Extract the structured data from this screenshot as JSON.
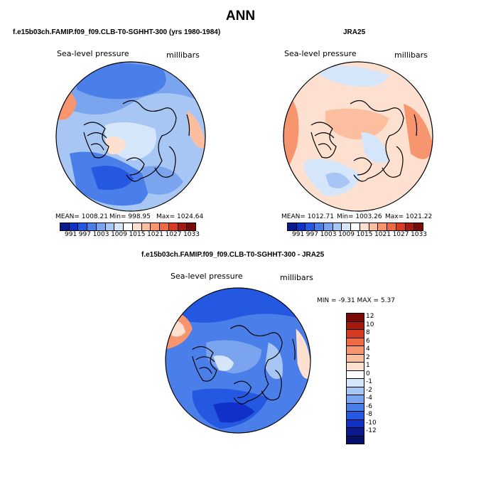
{
  "title": "ANN",
  "left_panel": {
    "header": "f.e15b03ch.FAMIP.f09_f09.CLB-T0-SGHHT-300 (yrs 1980-1984)",
    "variable": "Sea-level pressure",
    "units": "millibars",
    "mean": "MEAN= 1008.21",
    "min": "Min= 998.95",
    "max": "Max= 1024.64"
  },
  "right_panel": {
    "header": "JRA25",
    "variable": "Sea-level pressure",
    "units": "millibars",
    "mean": "MEAN= 1012.71",
    "min": "Min= 1003.26",
    "max": "Max= 1021.22"
  },
  "diff_panel": {
    "header": "f.e15b03ch.FAMIP.f09_f09.CLB-T0-SGHHT-300 - JRA25",
    "variable": "Sea-level pressure",
    "units": "millibars",
    "minmax": "MIN =  -9.31  MAX =   5.37"
  },
  "abs_colorbar": {
    "tick_labels": [
      "991",
      "997",
      "1003",
      "1009",
      "1015",
      "1021",
      "1027",
      "1033"
    ],
    "colors": [
      "#0a1a8c",
      "#1130c8",
      "#2458e0",
      "#4a7ee8",
      "#7aa4ee",
      "#a8c6f4",
      "#d6e6fa",
      "#ffffff",
      "#fde0cf",
      "#fbbfa0",
      "#f7966e",
      "#ee6a45",
      "#d63a22",
      "#a51a10",
      "#7a0a08"
    ]
  },
  "diff_colorbar": {
    "tick_labels": [
      "12",
      "10",
      "8",
      "6",
      "4",
      "2",
      "1",
      "0",
      "-1",
      "-2",
      "-4",
      "-6",
      "-8",
      "-10",
      "-12"
    ],
    "colors": [
      "#7a0a08",
      "#a51a10",
      "#d63a22",
      "#ee6a45",
      "#f7966e",
      "#fbbfa0",
      "#fde0cf",
      "#ffffff",
      "#d6e6fa",
      "#a8c6f4",
      "#7aa4ee",
      "#4a7ee8",
      "#2458e0",
      "#1130c8",
      "#0a1a8c",
      "#061066"
    ]
  },
  "map_colors": {
    "left_base": "#a8c6f4",
    "right_base": "#fde0cf",
    "diff_base": "#4a7ee8"
  }
}
